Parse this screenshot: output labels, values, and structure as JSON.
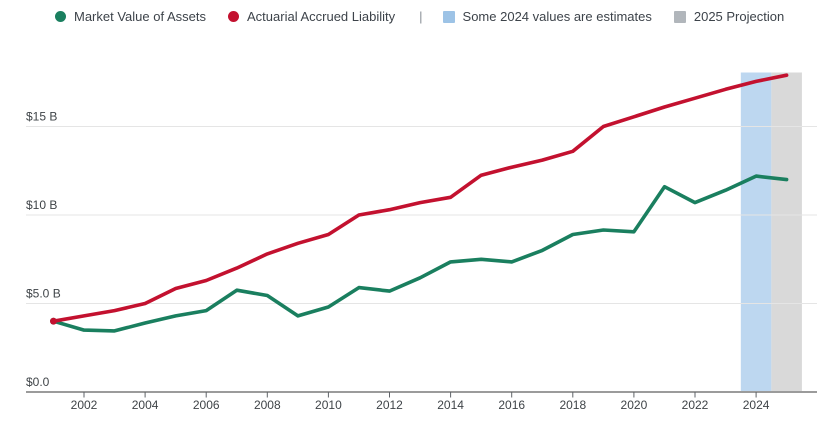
{
  "legend": {
    "divider": "|",
    "items": [
      {
        "label": "Market Value of Assets",
        "marker": "circle",
        "color": "#1a7f5f"
      },
      {
        "label": "Actuarial Accrued Liability",
        "marker": "circle",
        "color": "#c3112f"
      },
      {
        "label": "Some 2024 values are estimates",
        "marker": "square",
        "color": "#9dc3e6"
      },
      {
        "label": "2025 Projection",
        "marker": "square",
        "color": "#b1b6bb"
      }
    ]
  },
  "chart_data": {
    "type": "line",
    "x": [
      2001,
      2002,
      2003,
      2004,
      2005,
      2006,
      2007,
      2008,
      2009,
      2010,
      2011,
      2012,
      2013,
      2014,
      2015,
      2016,
      2017,
      2018,
      2019,
      2020,
      2021,
      2022,
      2023,
      2024,
      2025
    ],
    "series": [
      {
        "name": "Market Value of Assets",
        "color": "#1a7f5f",
        "values": [
          4.0,
          3.5,
          3.45,
          3.9,
          4.3,
          4.6,
          5.75,
          5.45,
          4.3,
          4.8,
          5.9,
          5.7,
          6.45,
          7.35,
          7.5,
          7.35,
          8.0,
          8.9,
          9.15,
          9.05,
          11.6,
          10.7,
          11.4,
          12.2,
          12.0
        ]
      },
      {
        "name": "Actuarial Accrued Liability",
        "color": "#c3112f",
        "values": [
          4.0,
          4.3,
          4.6,
          5.0,
          5.85,
          6.3,
          7.0,
          7.8,
          8.4,
          8.9,
          10.0,
          10.3,
          10.7,
          11.0,
          12.25,
          12.7,
          13.1,
          13.6,
          15.0,
          15.55,
          16.1,
          16.6,
          17.1,
          17.55,
          17.9
        ]
      }
    ],
    "ytick_values": [
      0,
      5,
      10,
      15
    ],
    "ytick_labels": [
      "$0.0",
      "$5.0 B",
      "$10 B",
      "$15 B"
    ],
    "xtick_values": [
      2002,
      2004,
      2006,
      2008,
      2010,
      2012,
      2014,
      2016,
      2018,
      2020,
      2022,
      2024
    ],
    "xtick_labels": [
      "2002",
      "2004",
      "2006",
      "2008",
      "2010",
      "2012",
      "2014",
      "2016",
      "2018",
      "2020",
      "2022",
      "2024"
    ],
    "xlim": [
      2001,
      2025.5
    ],
    "ylim": [
      0,
      18.5
    ],
    "grid": true,
    "legend_position": "top",
    "bands": [
      {
        "label": "Some 2024 values are estimates",
        "from": 2023.5,
        "to": 2024.5,
        "color": "#bdd7f0"
      },
      {
        "label": "2025 Projection",
        "from": 2024.5,
        "to": 2025.5,
        "color": "#d9d9d9"
      }
    ],
    "title": "",
    "xlabel": "",
    "ylabel": ""
  }
}
